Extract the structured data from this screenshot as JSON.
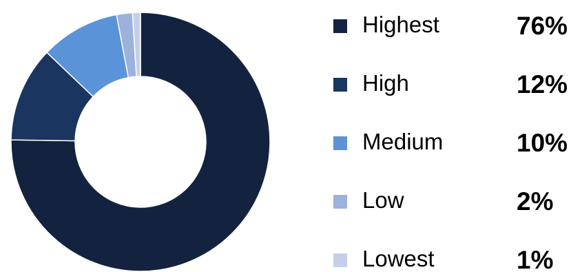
{
  "chart_data": {
    "type": "pie",
    "variant": "donut",
    "categories": [
      "Highest",
      "High",
      "Medium",
      "Low",
      "Lowest"
    ],
    "values": [
      76,
      12,
      10,
      2,
      1
    ],
    "value_labels": [
      "76%",
      "12%",
      "10%",
      "2%",
      "1%"
    ],
    "colors": [
      "#13233f",
      "#1a3560",
      "#5b93d9",
      "#9cb1db",
      "#c5d0e8"
    ],
    "legend_position": "right",
    "title": ""
  }
}
